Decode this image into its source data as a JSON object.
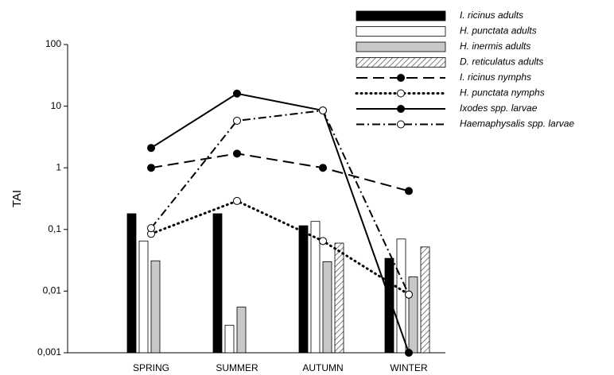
{
  "chart_data": {
    "type": "bar",
    "y_label": "TAI",
    "log_y": true,
    "categories": [
      "SPRING",
      "SUMMER",
      "AUTUMN",
      "WINTER"
    ],
    "ylim": [
      0.001,
      100
    ],
    "yticks": [
      {
        "value": 0.001,
        "label": "0,001"
      },
      {
        "value": 0.01,
        "label": "0,01"
      },
      {
        "value": 0.1,
        "label": "0,1"
      },
      1,
      10,
      100
    ],
    "legend": "top-right",
    "series": [
      {
        "name": "I. ricinus adults",
        "kind": "bar",
        "color": "#000000",
        "values": [
          0.18,
          0.18,
          0.115,
          0.034
        ]
      },
      {
        "name": "H. punctata adults",
        "kind": "bar",
        "color": "#ffffff",
        "values": [
          0.065,
          0.0028,
          0.135,
          0.07
        ]
      },
      {
        "name": "H. inermis adults",
        "kind": "bar",
        "color": "#c8c8c8",
        "values": [
          0.031,
          0.0055,
          0.03,
          0.017
        ]
      },
      {
        "name": "D. reticulatus adults",
        "kind": "bar",
        "color": "#ffffff",
        "pattern": "hatch",
        "values": [
          null,
          null,
          0.06,
          0.052
        ]
      },
      {
        "name": "I. ricinus nymphs",
        "kind": "line",
        "style": "dash",
        "marker": "filled",
        "color": "#000000",
        "values": [
          1.0,
          1.7,
          1.0,
          0.42
        ]
      },
      {
        "name": "H. punctata nymphs",
        "kind": "line",
        "style": "dot",
        "marker": "open",
        "color": "#000000",
        "values": [
          0.085,
          0.29,
          0.065,
          0.0088
        ]
      },
      {
        "name": "Ixodes spp. larvae",
        "kind": "line",
        "style": "solid",
        "marker": "filled",
        "color": "#000000",
        "values": [
          2.1,
          16,
          8.5,
          0.001
        ]
      },
      {
        "name": "Haemaphysalis spp. larvae",
        "kind": "line",
        "style": "dashdot",
        "marker": "open",
        "color": "#000000",
        "values": [
          0.105,
          5.8,
          8.5,
          0.0088
        ]
      }
    ]
  }
}
